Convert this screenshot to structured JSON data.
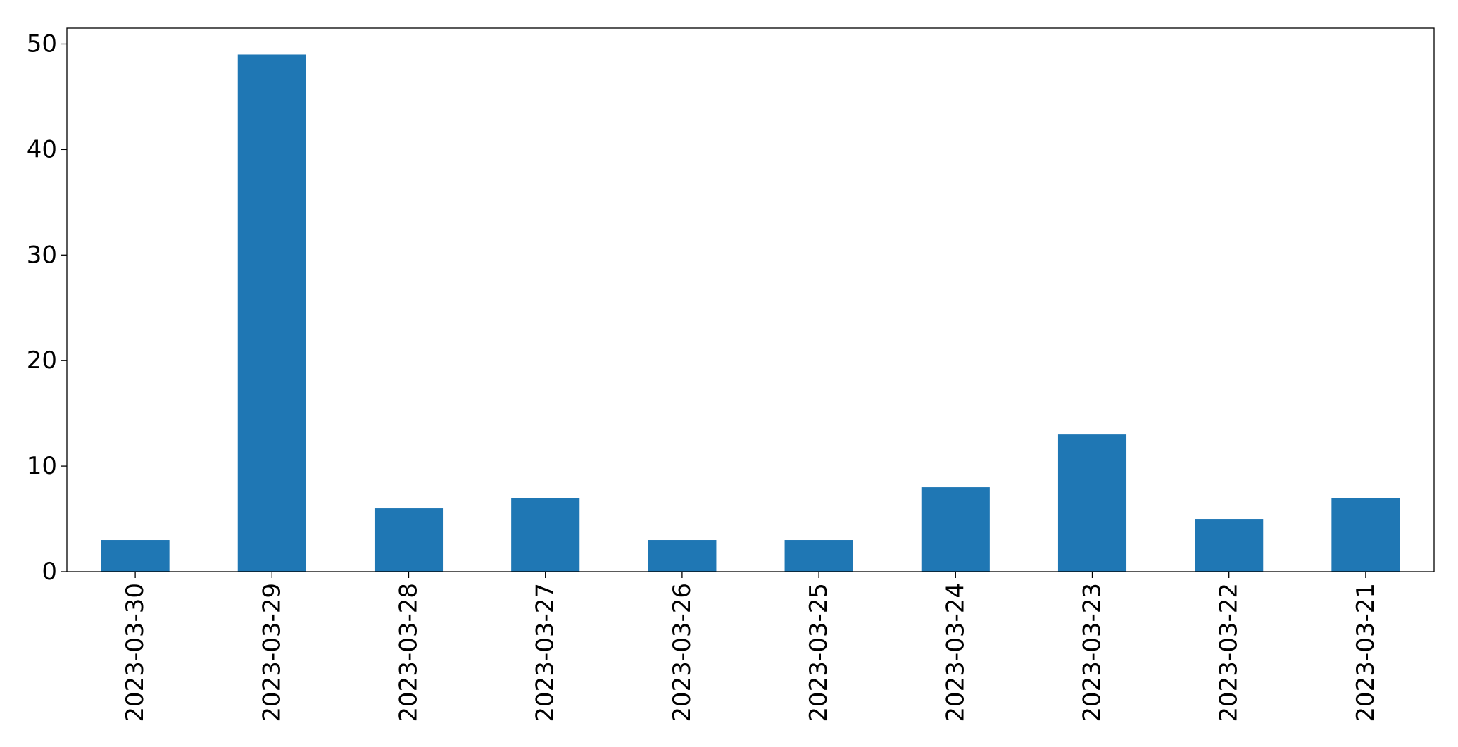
{
  "chart_data": {
    "type": "bar",
    "categories": [
      "2023-03-30",
      "2023-03-29",
      "2023-03-28",
      "2023-03-27",
      "2023-03-26",
      "2023-03-25",
      "2023-03-24",
      "2023-03-23",
      "2023-03-22",
      "2023-03-21"
    ],
    "values": [
      3,
      49,
      6,
      7,
      3,
      3,
      8,
      13,
      5,
      7
    ],
    "title": "",
    "xlabel": "",
    "ylabel": "",
    "ylim": [
      0,
      51.5
    ],
    "yticks": [
      0,
      10,
      20,
      30,
      40,
      50
    ],
    "bar_color": "#1f77b4",
    "grid": false,
    "legend": "none"
  }
}
